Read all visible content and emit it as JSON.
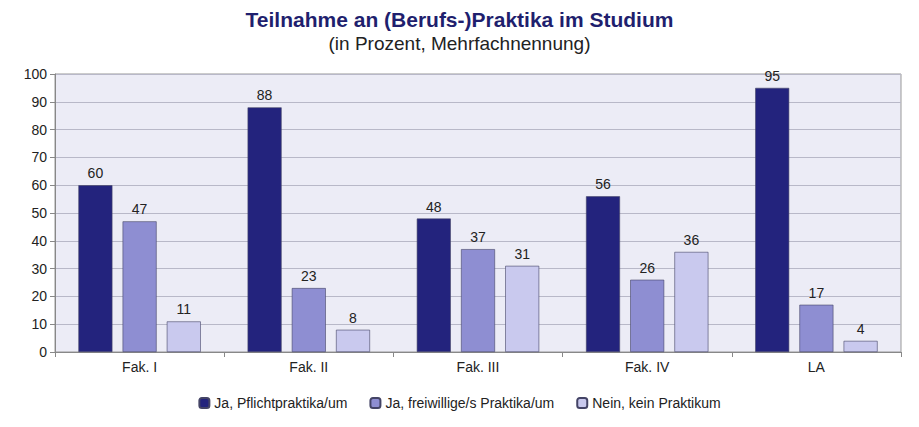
{
  "chart_data": {
    "type": "bar",
    "title": "Teilnahme an (Berufs-)Praktika im Studium",
    "subtitle": "(in Prozent, Mehrfachnennung)",
    "categories": [
      "Fak. I",
      "Fak. II",
      "Fak. III",
      "Fak. IV",
      "LA"
    ],
    "series": [
      {
        "name": "Ja, Pflichtpraktika/um",
        "color": "#23237d",
        "values": [
          60,
          88,
          48,
          56,
          95
        ]
      },
      {
        "name": "Ja, freiwillige/s Praktika/um",
        "color": "#8e8ed2",
        "values": [
          47,
          23,
          37,
          26,
          17
        ]
      },
      {
        "name": "Nein, kein Praktikum",
        "color": "#c9c9ee",
        "values": [
          11,
          8,
          31,
          36,
          4
        ]
      }
    ],
    "ylim": [
      0,
      100
    ],
    "yticks": [
      0,
      10,
      20,
      30,
      40,
      50,
      60,
      70,
      80,
      90,
      100
    ],
    "grid": true,
    "data_labels": true,
    "legend": "bottom"
  }
}
